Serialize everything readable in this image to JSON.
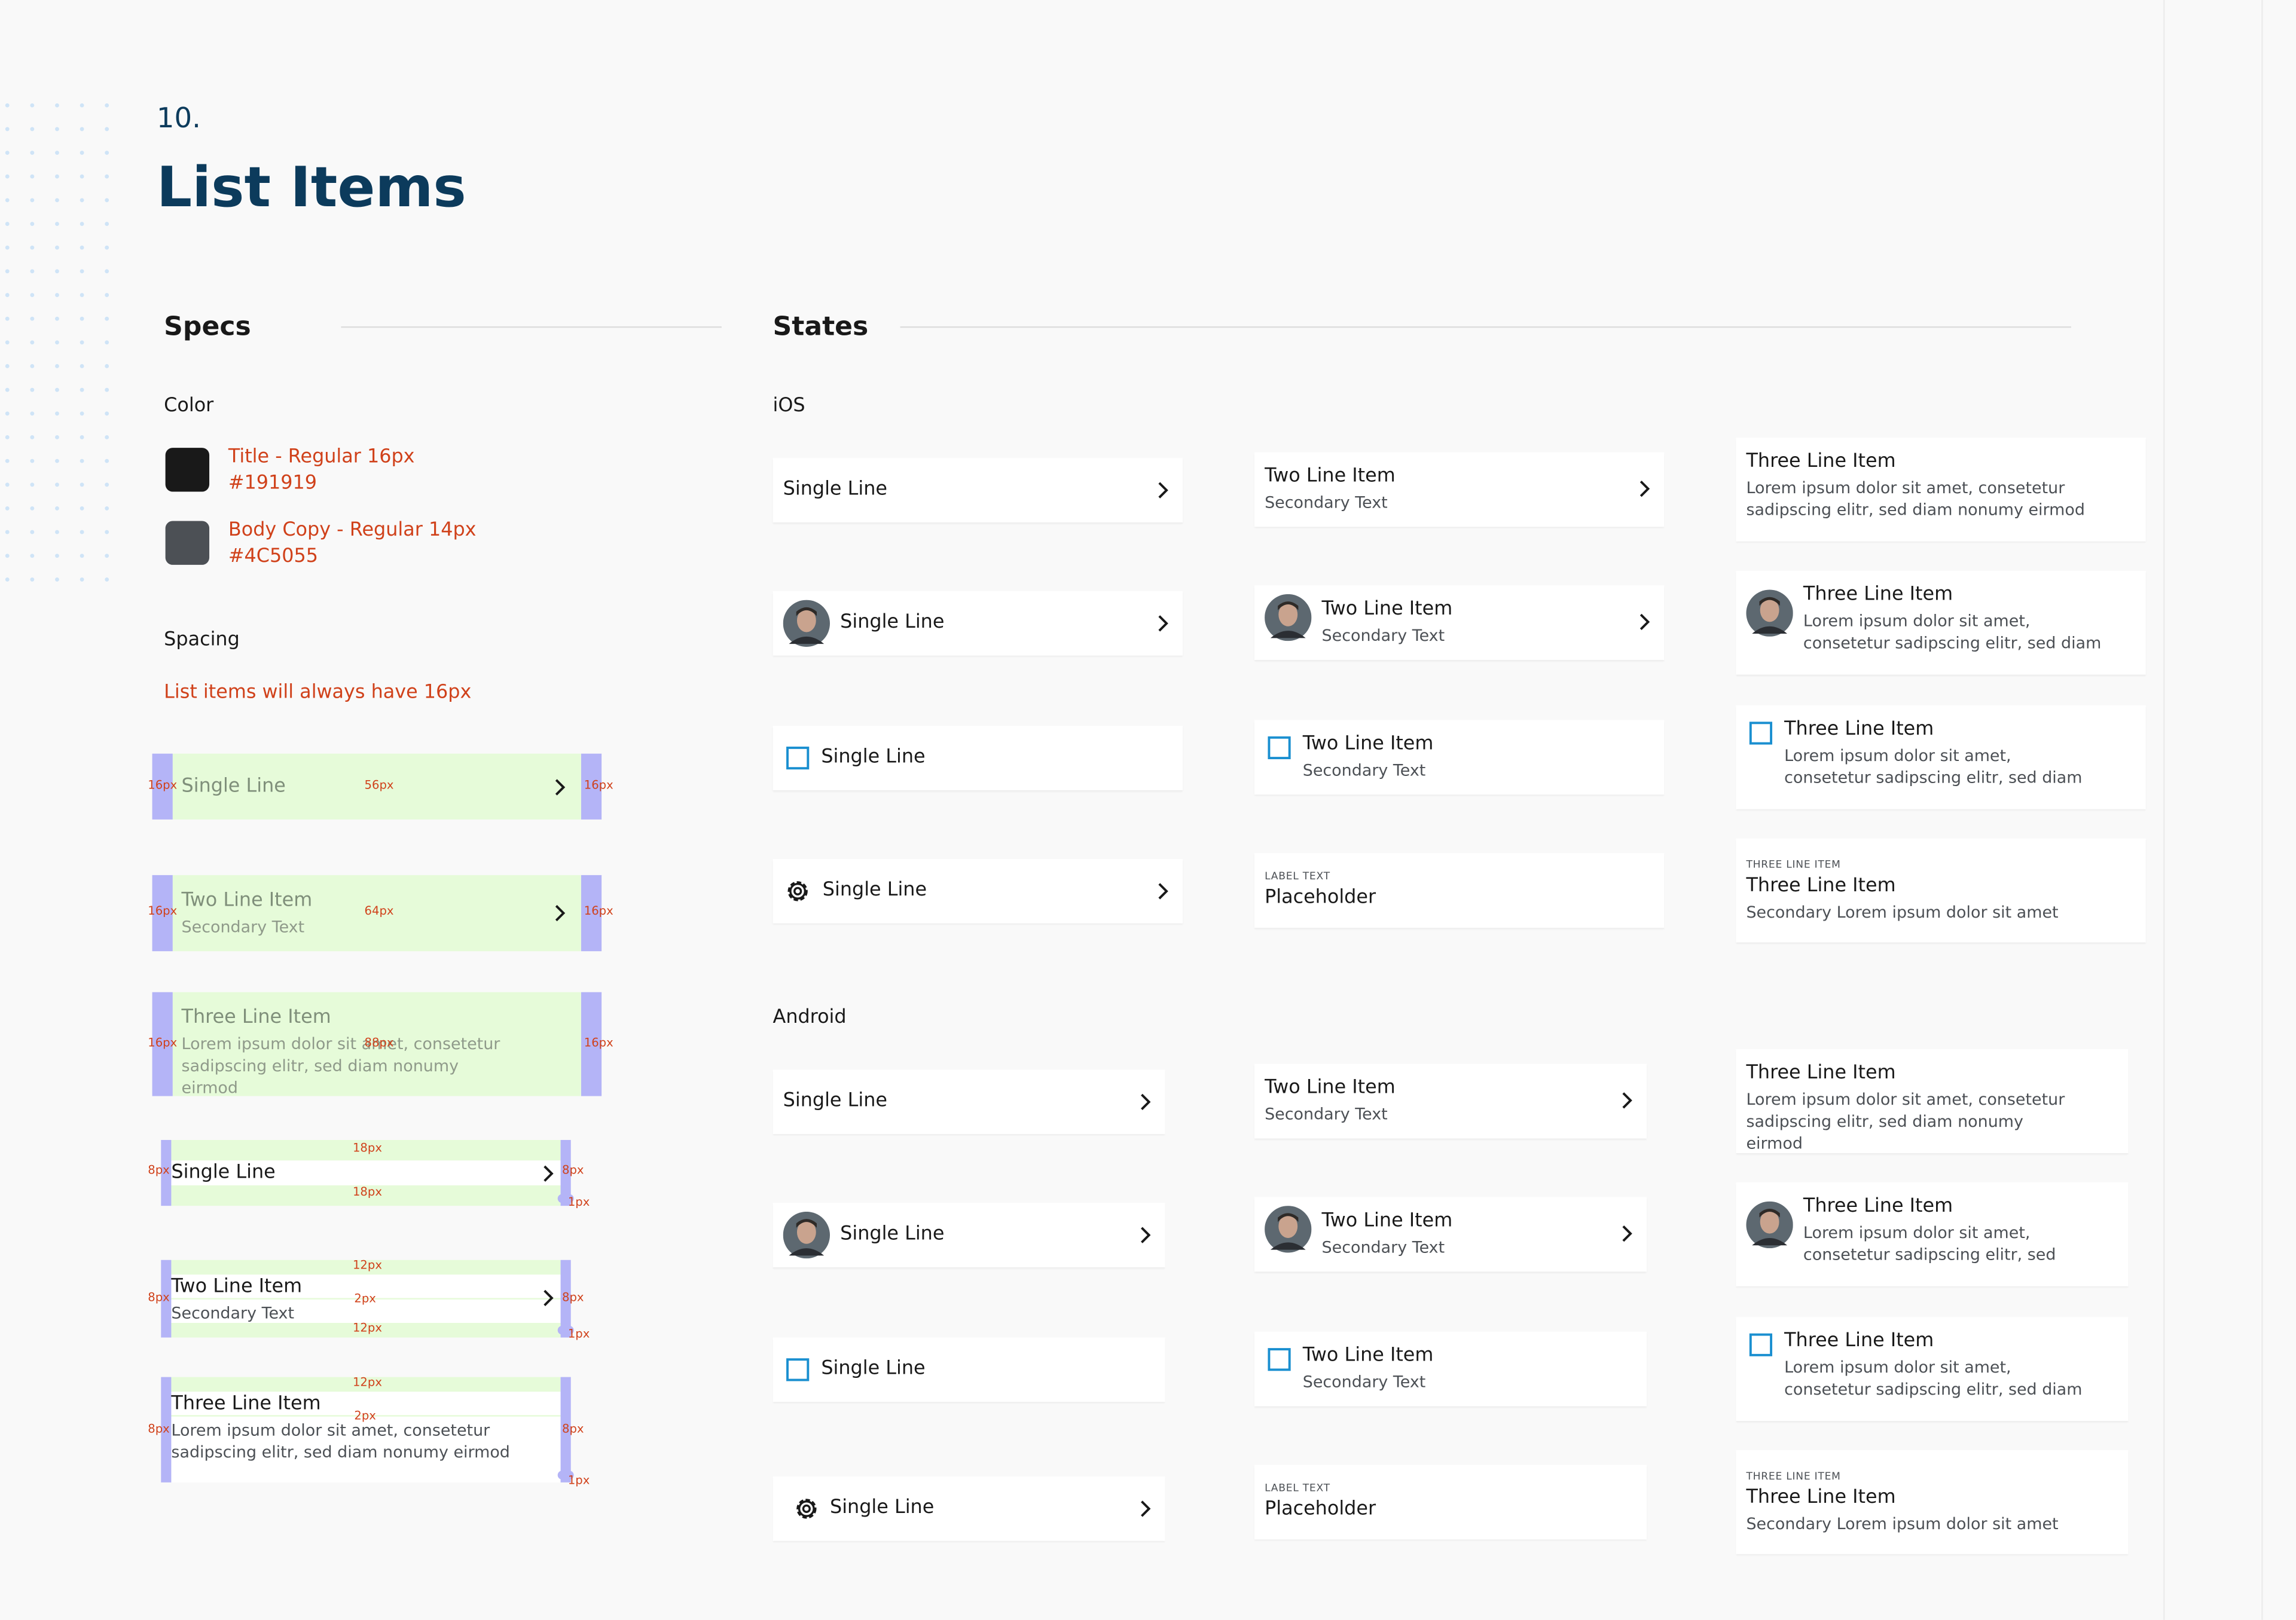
{
  "header": {
    "number": "10.",
    "title": "List Items"
  },
  "specs": {
    "heading": "Specs",
    "color_label": "Color",
    "colors": [
      {
        "name": "Title -  Regular 16px",
        "hex": "#191919"
      },
      {
        "name": "Body Copy -  Regular 14px",
        "hex": "#4C5055"
      }
    ],
    "spacing_label": "Spacing",
    "spacing_note": "List items will always have 16px",
    "ios_examples": [
      {
        "primary": "Single Line",
        "annotations": [
          "16px",
          "56px",
          "16px"
        ]
      },
      {
        "primary": "Two Line Item",
        "secondary": "Secondary Text",
        "annotations": [
          "16px",
          "64px",
          "16px"
        ]
      },
      {
        "primary": "Three Line Item",
        "secondary": "Lorem ipsum dolor sit amet, consetetur sadipscing elitr, sed diam nonumy eirmod",
        "annotations": [
          "16px",
          "88px",
          "16px"
        ]
      }
    ],
    "android_examples": [
      {
        "primary": "Single Line",
        "annotations": [
          "18px",
          "8px",
          "8px",
          "18px",
          "1px"
        ]
      },
      {
        "primary": "Two Line Item",
        "secondary": "Secondary Text",
        "annotations": [
          "12px",
          "8px",
          "2px",
          "8px",
          "12px",
          "1px"
        ]
      },
      {
        "primary": "Three Line Item",
        "secondary": "Lorem ipsum dolor sit amet, consetetur sadipscing elitr, sed diam nonumy eirmod",
        "annotations": [
          "12px",
          "2px",
          "8px",
          "8px",
          "1px"
        ]
      }
    ]
  },
  "states": {
    "heading": "States",
    "platforms": [
      {
        "name": "iOS",
        "columns": [
          [
            {
              "primary": "Single Line"
            },
            {
              "primary": "Single Line"
            },
            {
              "primary": "Single Line"
            },
            {
              "primary": "Single Line"
            }
          ],
          [
            {
              "primary": "Two Line Item",
              "secondary": "Secondary Text"
            },
            {
              "primary": "Two Line Item",
              "secondary": "Secondary Text"
            },
            {
              "primary": "Two Line Item",
              "secondary": "Secondary Text"
            },
            {
              "overline": "LABEL TEXT",
              "primary": "Placeholder"
            }
          ],
          [
            {
              "primary": "Three Line Item",
              "secondary": "Lorem ipsum dolor sit amet, consetetur sadipscing elitr, sed diam nonumy eirmod"
            },
            {
              "primary": "Three Line Item",
              "secondary": "Lorem ipsum dolor sit amet, consetetur sadipscing elitr, sed diam"
            },
            {
              "primary": "Three Line Item",
              "secondary": "Lorem ipsum dolor sit amet, consetetur sadipscing elitr, sed diam"
            },
            {
              "overline": "THREE LINE ITEM",
              "primary": "Three Line Item",
              "secondary": "Secondary Lorem ipsum dolor sit amet"
            }
          ]
        ]
      },
      {
        "name": "Android",
        "columns": [
          [
            {
              "primary": "Single Line"
            },
            {
              "primary": "Single Line"
            },
            {
              "primary": "Single Line"
            },
            {
              "primary": "Single Line"
            }
          ],
          [
            {
              "primary": "Two Line Item",
              "secondary": "Secondary Text"
            },
            {
              "primary": "Two Line Item",
              "secondary": "Secondary Text"
            },
            {
              "primary": "Two Line Item",
              "secondary": "Secondary Text"
            },
            {
              "overline": "LABEL TEXT",
              "primary": "Placeholder"
            }
          ],
          [
            {
              "primary": "Three Line Item",
              "secondary": "Lorem ipsum dolor sit amet, consetetur sadipscing elitr, sed diam nonumy eirmod"
            },
            {
              "primary": "Three Line Item",
              "secondary": "Lorem ipsum dolor sit amet, consetetur sadipscing elitr, sed"
            },
            {
              "primary": "Three Line Item",
              "secondary": "Lorem ipsum dolor sit amet, consetetur sadipscing elitr, sed diam"
            },
            {
              "overline": "THREE LINE ITEM",
              "primary": "Three Line Item",
              "secondary": "Secondary Lorem ipsum dolor sit amet"
            }
          ]
        ]
      }
    ]
  }
}
